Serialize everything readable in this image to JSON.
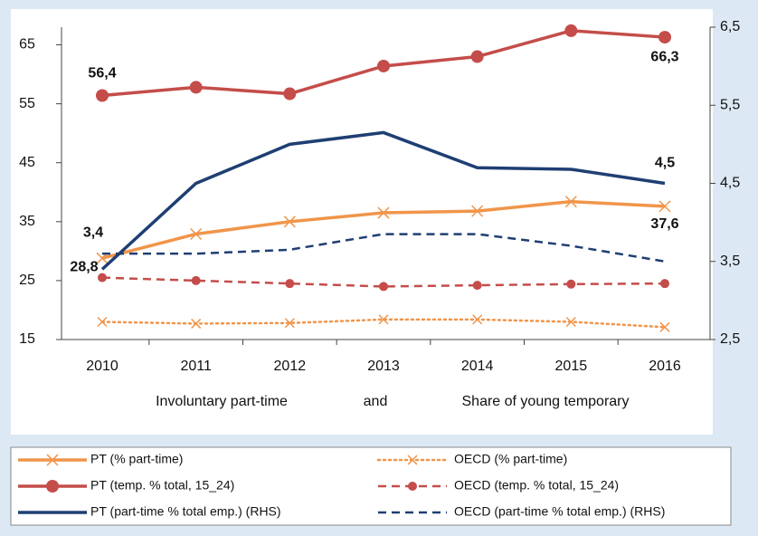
{
  "chart_data": {
    "type": "line",
    "categories": [
      "2010",
      "2011",
      "2012",
      "2013",
      "2014",
      "2015",
      "2016"
    ],
    "annotations": [
      "Involuntary part-time",
      "and",
      "Share of young temporary"
    ],
    "ylim": [
      15,
      68
    ],
    "yticks": [
      15,
      25,
      35,
      45,
      55,
      65
    ],
    "y2lim": [
      2.5,
      6.5
    ],
    "y2ticks": [
      {
        "value": 2.5,
        "label": "2,5"
      },
      {
        "value": 3.5,
        "label": "3,5"
      },
      {
        "value": 4.5,
        "label": "4,5"
      },
      {
        "value": 5.5,
        "label": "5,5"
      },
      {
        "value": 6.5,
        "label": "6,5"
      }
    ],
    "series": [
      {
        "name": "PT (% part-time)",
        "color": "#f0954a",
        "style": "solid",
        "marker": "x",
        "values": [
          28.8,
          32.9,
          35.0,
          36.5,
          36.8,
          38.4,
          37.6
        ],
        "value_labels": [
          "28,8",
          null,
          null,
          null,
          null,
          null,
          "37,6"
        ]
      },
      {
        "name": "OECD (% part-time)",
        "color": "#f0954a",
        "style": "dotted",
        "marker": "x",
        "values": [
          18.0,
          17.7,
          17.8,
          18.4,
          18.4,
          18.0,
          17.1
        ]
      },
      {
        "name": "PT (temp. % total, 15_24)",
        "color": "#c44d4a",
        "style": "solid",
        "marker": "circle",
        "values": [
          56.4,
          57.8,
          56.7,
          61.4,
          63.0,
          67.4,
          66.3
        ],
        "value_labels": [
          "56,4",
          null,
          null,
          null,
          null,
          null,
          "66,3"
        ]
      },
      {
        "name": "OECD (temp. % total, 15_24)",
        "color": "#c44d4a",
        "style": "dashed",
        "marker": "circle",
        "values": [
          25.5,
          25.0,
          24.5,
          24.0,
          24.2,
          24.4,
          24.5
        ]
      },
      {
        "name": "PT (part-time % total emp.)  (RHS)",
        "color": "#1f3f73",
        "style": "solid",
        "marker": "none",
        "axis": "y2",
        "values": [
          3.4,
          4.5,
          5.0,
          5.15,
          4.7,
          4.68,
          4.5
        ],
        "value_labels": [
          "3,4",
          null,
          null,
          null,
          null,
          null,
          "4,5"
        ]
      },
      {
        "name": "OECD (part-time % total emp.)  (RHS)",
        "color": "#1f3f73",
        "style": "dashed",
        "marker": "none",
        "axis": "y2",
        "values": [
          3.6,
          3.6,
          3.65,
          3.85,
          3.85,
          3.7,
          3.5
        ]
      }
    ]
  }
}
